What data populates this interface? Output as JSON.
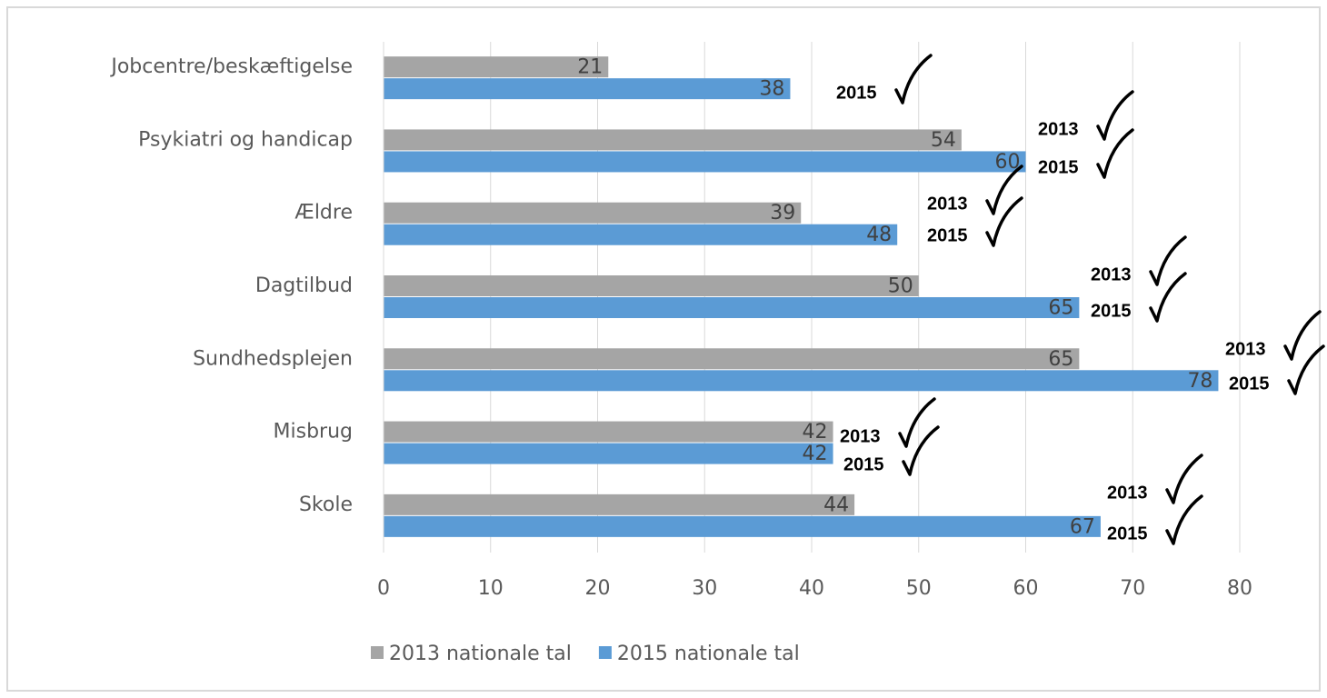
{
  "chart_data": {
    "type": "barh",
    "categories": [
      "Jobcentre/beskæftigelse",
      "Psykiatri og handicap",
      "Ældre",
      "Dagtilbud",
      "Sundhedsplejen",
      "Misbrug",
      "Skole"
    ],
    "series": [
      {
        "name": "2013 nationale tal",
        "color": "#a5a5a5",
        "values": [
          21,
          54,
          39,
          50,
          65,
          42,
          44
        ]
      },
      {
        "name": "2015 nationale tal",
        "color": "#5b9bd5",
        "values": [
          38,
          60,
          48,
          65,
          78,
          42,
          67
        ]
      }
    ],
    "xlim": [
      0,
      80
    ],
    "xticks": [
      0,
      10,
      20,
      30,
      40,
      50,
      60,
      70,
      80
    ],
    "grid": true,
    "legend": "bottom",
    "annotations": [
      [
        "2015"
      ],
      [
        "2013",
        "2015"
      ],
      [
        "2013",
        "2015"
      ],
      [
        "2013",
        "2015"
      ],
      [
        "2013",
        "2015"
      ],
      [
        "2013",
        "2015"
      ],
      [
        "2013",
        "2015"
      ]
    ]
  }
}
